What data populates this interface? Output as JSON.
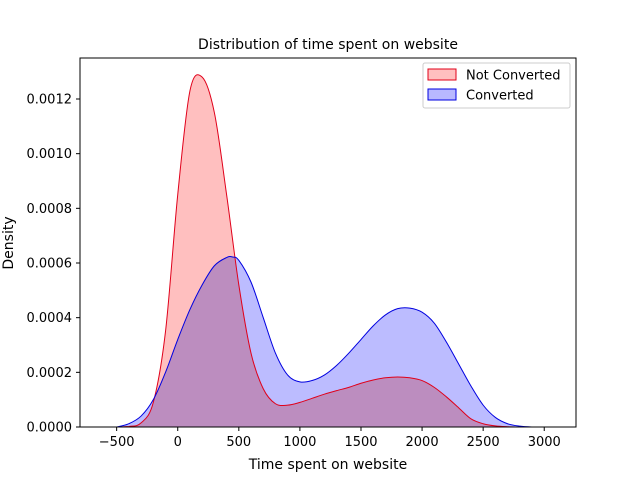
{
  "chart_data": {
    "type": "area",
    "title": "Distribution of time spent on website",
    "xlabel": "Time spent on website",
    "ylabel": "Density",
    "xlim": [
      -800,
      3260
    ],
    "ylim": [
      0,
      0.00135
    ],
    "x_ticks": [
      -500,
      0,
      500,
      1000,
      1500,
      2000,
      2500,
      3000
    ],
    "x_tick_labels": [
      "−500",
      "0",
      "500",
      "1000",
      "1500",
      "2000",
      "2500",
      "3000"
    ],
    "y_ticks": [
      0,
      0.0002,
      0.0004,
      0.0006,
      0.0008,
      0.001,
      0.0012
    ],
    "y_tick_labels": [
      "0.0000",
      "0.0002",
      "0.0004",
      "0.0006",
      "0.0008",
      "0.0010",
      "0.0012"
    ],
    "grid": false,
    "legend_position": "top-right",
    "series": [
      {
        "name": "Not Converted",
        "fill": "#ffbfbf",
        "stroke": "#e0001a",
        "x": [
          -500,
          -400,
          -300,
          -200,
          -100,
          0,
          100,
          200,
          300,
          400,
          500,
          600,
          700,
          800,
          900,
          1000,
          1100,
          1200,
          1300,
          1400,
          1500,
          1600,
          1700,
          1800,
          1900,
          2000,
          2100,
          2200,
          2300,
          2400,
          2500,
          2600,
          2700,
          2800,
          2900
        ],
        "y": [
          0.0,
          2e-06,
          1.5e-05,
          9e-05,
          0.00035,
          0.00085,
          0.00123,
          0.00128,
          0.00115,
          0.00085,
          0.00052,
          0.00027,
          0.00014,
          8.5e-05,
          8e-05,
          9e-05,
          0.000105,
          0.00012,
          0.000133,
          0.000145,
          0.00016,
          0.000172,
          0.00018,
          0.000183,
          0.00018,
          0.00017,
          0.000145,
          0.00011,
          7e-05,
          3e-05,
          1.2e-05,
          4e-06,
          1e-06,
          0.0,
          0.0
        ]
      },
      {
        "name": "Converted",
        "fill": "#b8b8ff",
        "stroke": "#0000e0",
        "x": [
          -500,
          -400,
          -300,
          -200,
          -100,
          0,
          100,
          200,
          300,
          400,
          450,
          500,
          600,
          700,
          800,
          900,
          1000,
          1100,
          1200,
          1300,
          1400,
          1500,
          1600,
          1700,
          1800,
          1900,
          2000,
          2100,
          2200,
          2300,
          2400,
          2500,
          2600,
          2700,
          2800,
          2900,
          3000
        ],
        "y": [
          0.0,
          1.2e-05,
          4e-05,
          0.0001,
          0.0002,
          0.00032,
          0.00043,
          0.00052,
          0.00059,
          0.00062,
          0.000622,
          0.00061,
          0.00053,
          0.0004,
          0.00027,
          0.00019,
          0.000165,
          0.00017,
          0.00019,
          0.000225,
          0.00027,
          0.00032,
          0.00037,
          0.00041,
          0.000433,
          0.000435,
          0.00042,
          0.00038,
          0.00031,
          0.00023,
          0.00015,
          8e-05,
          3.5e-05,
          1.2e-05,
          3e-06,
          0.0,
          0.0
        ]
      }
    ]
  }
}
